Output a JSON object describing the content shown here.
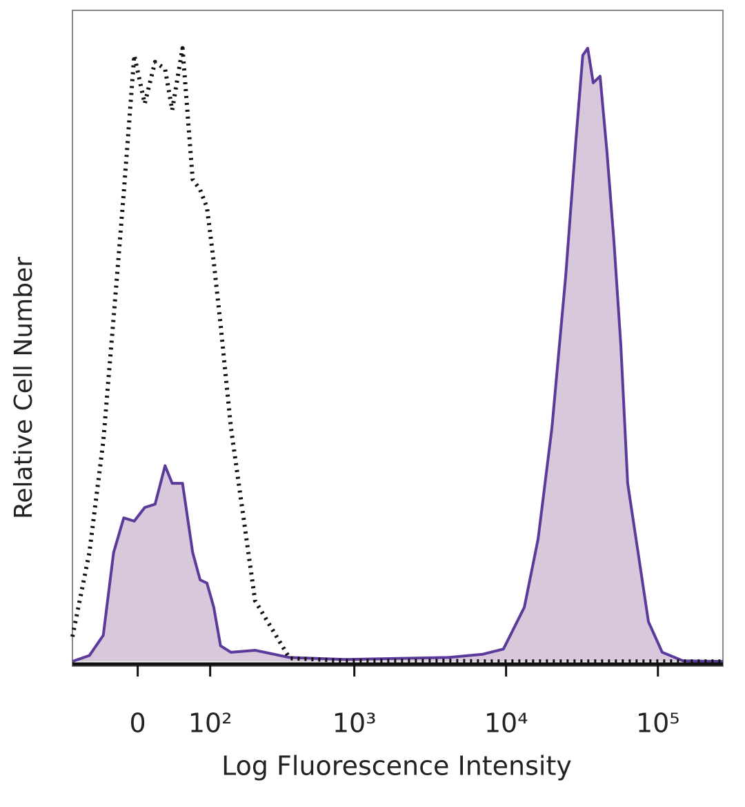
{
  "chart_data": {
    "type": "histogram-overlay",
    "xlabel": "Log Fluorescence Intensity",
    "ylabel": "Relative Cell Number",
    "xscale": "biexponential",
    "xlim": [
      -87,
      268000
    ],
    "ylim": [
      0,
      100
    ],
    "xticks": [
      0,
      {
        "value": 100,
        "label": "10²"
      },
      {
        "value": 1000,
        "label": "10³"
      },
      {
        "value": 10000,
        "label": "10⁴"
      },
      {
        "value": 100000,
        "label": "10⁵"
      }
    ],
    "x": [
      -87,
      -60,
      -41,
      -28,
      -16,
      -4,
      8,
      20,
      32,
      41,
      55,
      70,
      82,
      94,
      107,
      121,
      145,
      216,
      371,
      865,
      4160,
      7020,
      9610,
      13190,
      16250,
      20040,
      24700,
      28900,
      32000,
      34500,
      37500,
      41600,
      46200,
      51300,
      57000,
      63200,
      74000,
      86600,
      106700,
      146100,
      268000
    ],
    "series": [
      {
        "color": "#5b3a9a",
        "fill": "#d8c8dc",
        "dash": false,
        "values": [
          0.2,
          1.1,
          4.2,
          16.9,
          22.2,
          21.7,
          23.8,
          24.3,
          30.2,
          27.5,
          27.5,
          16.9,
          12.7,
          12.2,
          8.5,
          2.6,
          1.6,
          1.9,
          0.8,
          0.5,
          0.8,
          1.3,
          2.1,
          8.5,
          19.0,
          36.0,
          59.3,
          80.4,
          93.1,
          94.2,
          88.9,
          89.9,
          78.3,
          64.6,
          48.7,
          27.5,
          16.9,
          6.3,
          1.6,
          0.3,
          0.2
        ]
      },
      {
        "color": "#111111",
        "fill": null,
        "dash": true,
        "values": [
          4.0,
          16.9,
          33.9,
          52.9,
          72.0,
          93.1,
          85.7,
          92.1,
          91.0,
          84.7,
          94.2,
          74.1,
          72.5,
          69.8,
          61.4,
          51.9,
          36.0,
          9.5,
          0.7,
          0.3,
          0.3,
          0.2,
          0.2,
          0.2,
          0.2,
          0.2,
          0.2,
          0.2,
          0.2,
          0.2,
          0.2,
          0.2,
          0.2,
          0.2,
          0.2,
          0.2,
          0.2,
          0.2,
          0.2,
          0.2,
          0.2
        ]
      }
    ]
  }
}
